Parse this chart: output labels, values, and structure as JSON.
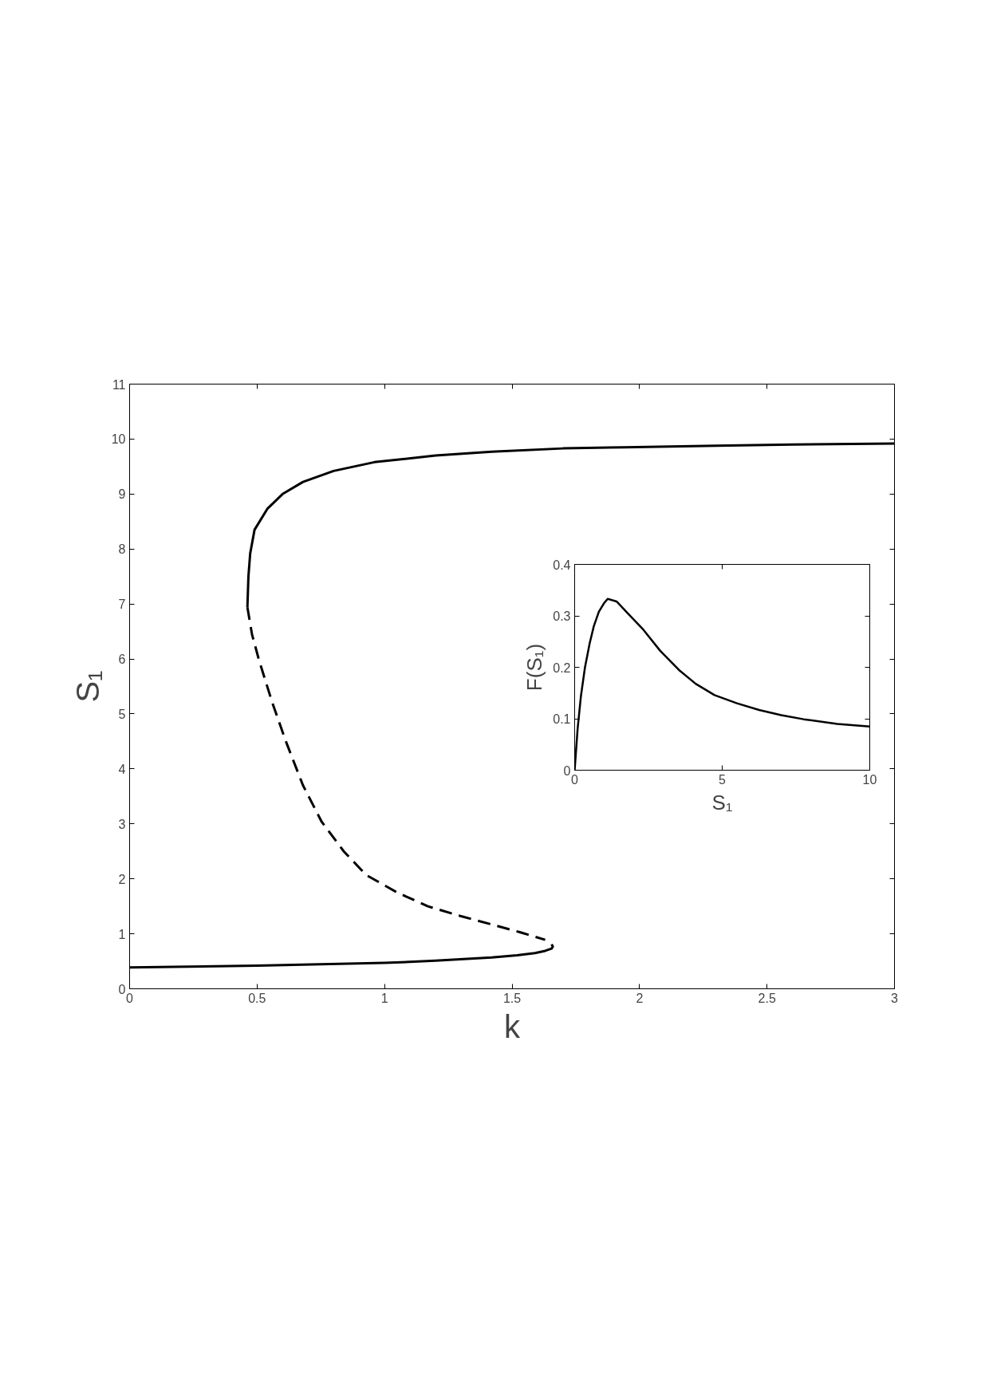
{
  "chart_data": [
    {
      "type": "line",
      "xlabel": "k",
      "ylabel": "S₁",
      "xlim": [
        0,
        3
      ],
      "ylim": [
        0,
        11
      ],
      "xticks": [
        0,
        0.5,
        1,
        1.5,
        2,
        2.5,
        3
      ],
      "yticks": [
        0,
        1,
        2,
        3,
        4,
        5,
        6,
        7,
        8,
        9,
        10,
        11
      ],
      "grid": false,
      "series": [
        {
          "color": "#000000",
          "line_style": "solid",
          "x": [
            0.462,
            0.466,
            0.473,
            0.49,
            0.54,
            0.6,
            0.68,
            0.8,
            0.96,
            1.2,
            1.42,
            1.7,
            1.94,
            2.3,
            2.6,
            3.0
          ],
          "values": [
            6.94,
            7.5,
            7.92,
            8.35,
            8.73,
            9.0,
            9.22,
            9.42,
            9.58,
            9.7,
            9.77,
            9.83,
            9.85,
            9.88,
            9.9,
            9.92
          ]
        },
        {
          "color": "#000000",
          "line_style": "dashed",
          "x": [
            0.462,
            0.48,
            0.508,
            0.56,
            0.613,
            0.68,
            0.753,
            0.84,
            0.928,
            1.05,
            1.17,
            1.3,
            1.42,
            1.53,
            1.63
          ],
          "values": [
            6.94,
            6.45,
            5.97,
            5.2,
            4.5,
            3.7,
            3.04,
            2.5,
            2.07,
            1.75,
            1.5,
            1.32,
            1.17,
            1.03,
            0.89
          ]
        },
        {
          "color": "#000000",
          "line_style": "solid",
          "x": [
            0,
            0.5,
            1.0,
            1.2,
            1.42,
            1.52,
            1.59,
            1.63,
            1.655,
            1.66,
            1.655
          ],
          "values": [
            0.39,
            0.42,
            0.47,
            0.51,
            0.57,
            0.61,
            0.65,
            0.69,
            0.73,
            0.77,
            0.81
          ]
        }
      ]
    },
    {
      "type": "line",
      "xlabel": "S₁",
      "ylabel": "F(S₁)",
      "xlim": [
        0,
        10
      ],
      "ylim": [
        0,
        0.4
      ],
      "xticks": [
        0,
        5,
        10
      ],
      "yticks": [
        0,
        0.1,
        0.2,
        0.3,
        0.4
      ],
      "grid": false,
      "series": [
        {
          "color": "#000000",
          "line_style": "solid",
          "x": [
            0,
            0.1,
            0.21,
            0.35,
            0.51,
            0.65,
            0.82,
            1.0,
            1.12,
            1.42,
            1.8,
            2.33,
            2.9,
            3.53,
            4.1,
            4.74,
            5.5,
            6.25,
            7.0,
            7.76,
            8.9,
            10
          ],
          "values": [
            0,
            0.08,
            0.143,
            0.2,
            0.247,
            0.28,
            0.308,
            0.325,
            0.333,
            0.328,
            0.305,
            0.273,
            0.232,
            0.195,
            0.168,
            0.146,
            0.13,
            0.117,
            0.107,
            0.099,
            0.09,
            0.085
          ]
        }
      ]
    }
  ]
}
